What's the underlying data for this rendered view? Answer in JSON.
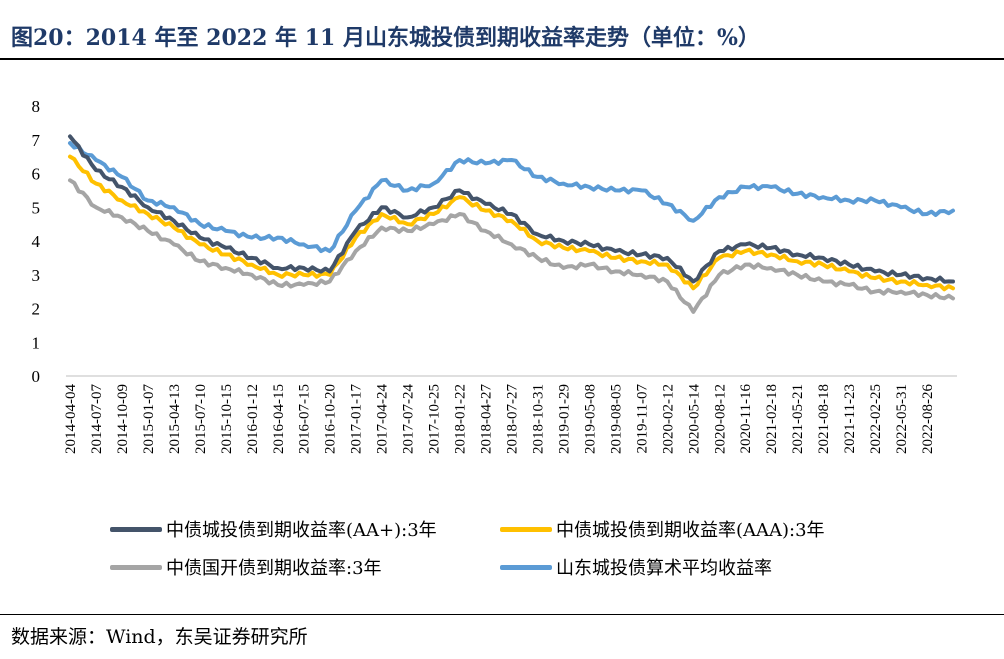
{
  "title": "图20：2014 年至 2022 年 11 月山东城投债到期收益率走势（单位：%）",
  "source": "数据来源：Wind，东吴证券研究所",
  "chart_data": {
    "type": "line",
    "title": "图20：2014 年至 2022 年 11 月山东城投债到期收益率走势（单位：%）",
    "xlabel": "",
    "ylabel": "",
    "ylim": [
      0,
      8
    ],
    "yticks": [
      0,
      1,
      2,
      3,
      4,
      5,
      6,
      7,
      8
    ],
    "grid": false,
    "legend_position": "bottom",
    "x_tick_labels": [
      "2014-04-04",
      "2014-07-07",
      "2014-10-09",
      "2015-01-07",
      "2015-04-13",
      "2015-07-10",
      "2015-10-15",
      "2016-01-12",
      "2016-04-15",
      "2016-07-15",
      "2016-10-20",
      "2017-01-17",
      "2017-04-24",
      "2017-07-24",
      "2017-10-25",
      "2018-01-22",
      "2018-04-27",
      "2018-07-27",
      "2018-10-31",
      "2019-01-29",
      "2019-05-08",
      "2019-08-05",
      "2019-11-07",
      "2020-02-12",
      "2020-05-14",
      "2020-08-12",
      "2020-11-16",
      "2021-02-18",
      "2021-05-21",
      "2021-08-18",
      "2021-11-23",
      "2022-02-25",
      "2022-05-31",
      "2022-08-26"
    ],
    "x": [
      "2014-04-04",
      "2014-07-07",
      "2014-10-09",
      "2015-01-07",
      "2015-04-13",
      "2015-07-10",
      "2015-10-15",
      "2016-01-12",
      "2016-04-15",
      "2016-07-15",
      "2016-10-20",
      "2017-01-17",
      "2017-04-24",
      "2017-07-24",
      "2017-10-25",
      "2018-01-22",
      "2018-04-27",
      "2018-07-27",
      "2018-10-31",
      "2019-01-29",
      "2019-05-08",
      "2019-08-05",
      "2019-11-07",
      "2020-02-12",
      "2020-05-14",
      "2020-08-12",
      "2020-11-16",
      "2021-02-18",
      "2021-05-21",
      "2021-08-18",
      "2021-11-23",
      "2022-02-25",
      "2022-05-31",
      "2022-08-26",
      "2022-11-15"
    ],
    "series": [
      {
        "name": "山东城投债算术平均收益率",
        "color": "#5b9bd5",
        "values": [
          6.9,
          6.4,
          5.9,
          5.2,
          5.0,
          4.5,
          4.3,
          4.1,
          4.1,
          3.9,
          3.7,
          4.9,
          5.8,
          5.5,
          5.7,
          6.4,
          6.3,
          6.4,
          5.9,
          5.7,
          5.6,
          5.5,
          5.5,
          5.1,
          4.6,
          5.3,
          5.6,
          5.6,
          5.4,
          5.3,
          5.2,
          5.2,
          5.0,
          4.8,
          4.9
        ]
      },
      {
        "name": "中债城投债到期收益率(AA+):3年",
        "color": "#44546a",
        "values": [
          7.1,
          6.1,
          5.6,
          5.0,
          4.6,
          4.1,
          3.8,
          3.5,
          3.2,
          3.2,
          3.1,
          4.3,
          5.0,
          4.7,
          5.0,
          5.5,
          5.1,
          4.8,
          4.2,
          4.0,
          3.9,
          3.7,
          3.6,
          3.5,
          2.8,
          3.7,
          3.9,
          3.8,
          3.6,
          3.5,
          3.3,
          3.1,
          3.0,
          2.9,
          2.8
        ]
      },
      {
        "name": "中债城投债到期收益率(AAA):3年",
        "color": "#ffc000",
        "values": [
          6.5,
          5.7,
          5.2,
          4.8,
          4.4,
          3.9,
          3.6,
          3.3,
          3.0,
          3.0,
          3.0,
          4.1,
          4.8,
          4.5,
          4.8,
          5.3,
          4.9,
          4.6,
          4.0,
          3.8,
          3.7,
          3.5,
          3.4,
          3.3,
          2.6,
          3.5,
          3.7,
          3.6,
          3.4,
          3.3,
          3.1,
          2.9,
          2.8,
          2.7,
          2.6
        ]
      },
      {
        "name": "中债国开债到期收益率:3年",
        "color": "#a5a5a5",
        "values": [
          5.8,
          5.0,
          4.7,
          4.3,
          3.9,
          3.4,
          3.2,
          3.0,
          2.7,
          2.7,
          2.8,
          3.7,
          4.4,
          4.3,
          4.5,
          4.8,
          4.3,
          3.9,
          3.5,
          3.2,
          3.3,
          3.1,
          3.0,
          2.8,
          1.9,
          3.0,
          3.3,
          3.2,
          3.0,
          2.8,
          2.7,
          2.5,
          2.5,
          2.4,
          2.3
        ]
      }
    ]
  },
  "legend": [
    {
      "label": "中债城投债到期收益率(AA+):3年",
      "color": "#44546a"
    },
    {
      "label": "中债城投债到期收益率(AAA):3年",
      "color": "#ffc000"
    },
    {
      "label": "中债国开债到期收益率:3年",
      "color": "#a5a5a5"
    },
    {
      "label": "山东城投债算术平均收益率",
      "color": "#5b9bd5"
    }
  ]
}
